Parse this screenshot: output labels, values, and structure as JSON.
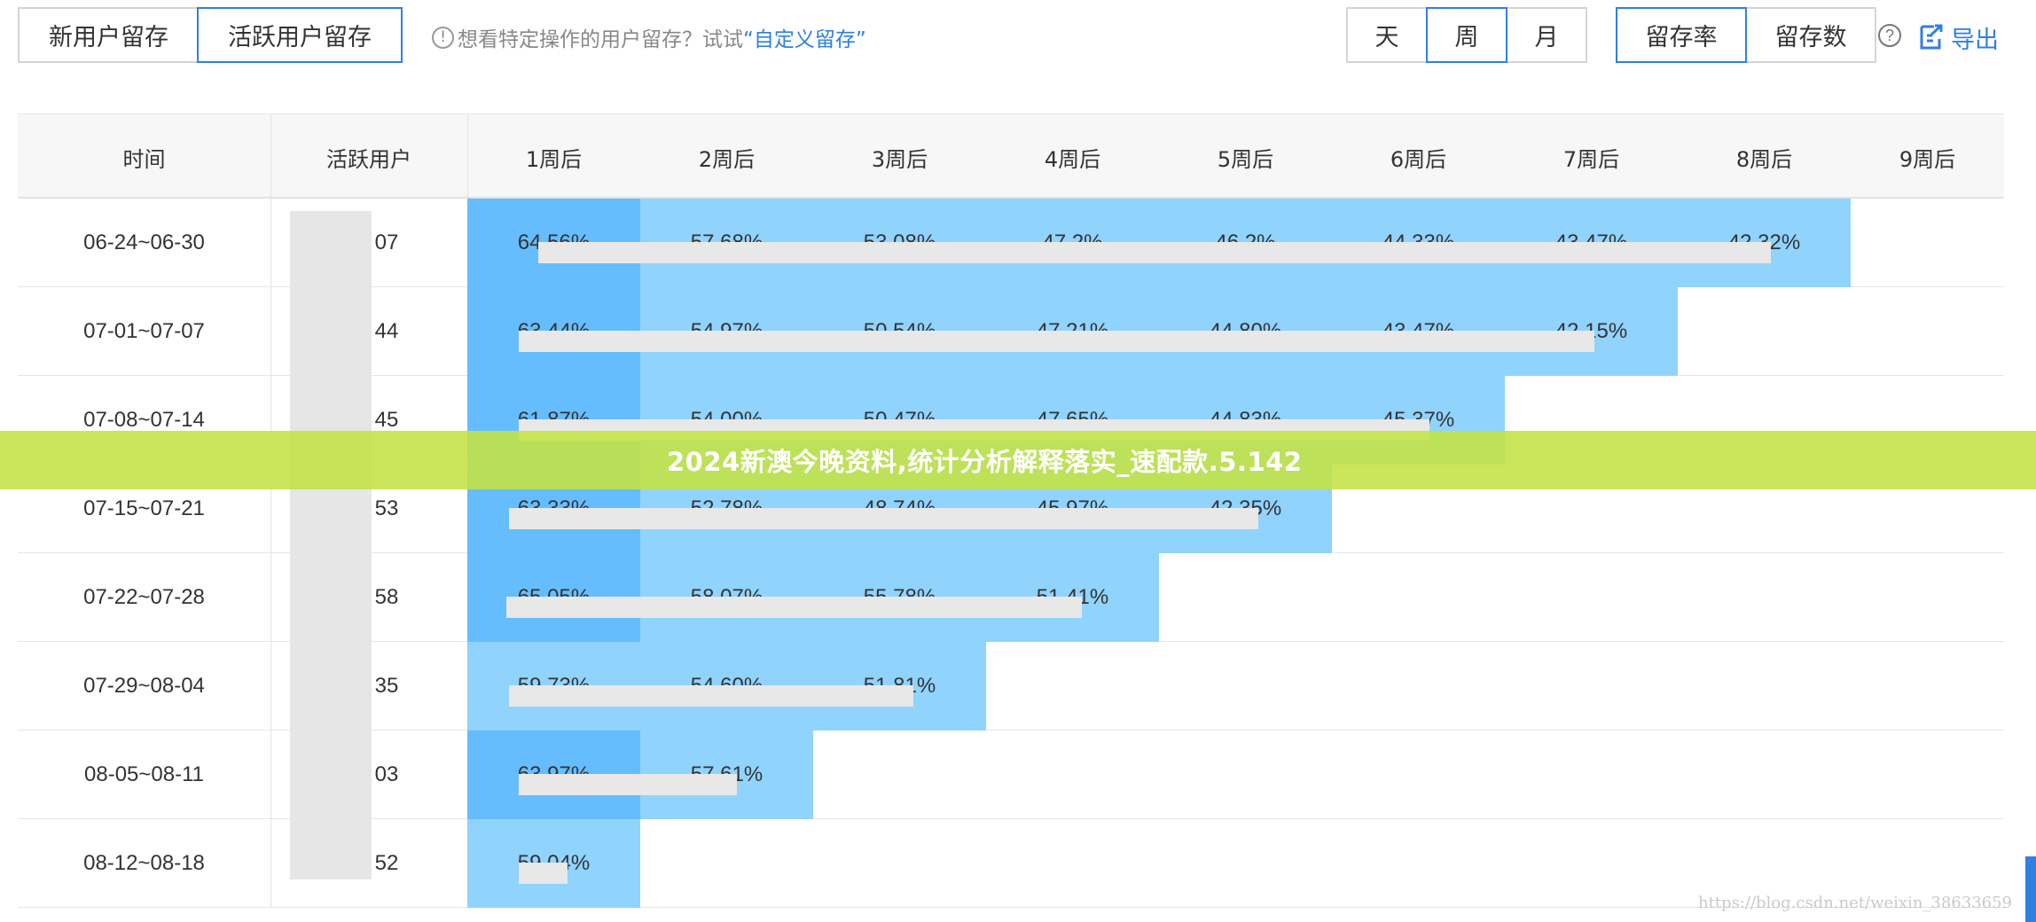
{
  "tabs": {
    "new_user": "新用户留存",
    "active_user": "活跃用户留存",
    "active_selected": "active_user"
  },
  "hint": {
    "prefix": "想看特定操作的用户留存？试试",
    "link": "“自定义留存”",
    "icon": "info-circle-icon"
  },
  "period": {
    "day": "天",
    "week": "周",
    "month": "月",
    "selected": "week"
  },
  "metric": {
    "rate": "留存率",
    "count": "留存数",
    "selected": "rate"
  },
  "export_label": "导出",
  "help_icon": "question-circle-icon",
  "export_icon": "export-icon",
  "colors": {
    "accent": "#2f80e0",
    "cell_dark": "#66bdfd",
    "cell_light": "#90d3fd",
    "banner": "#c4e243"
  },
  "table": {
    "headers": [
      "时间",
      "活跃用户",
      "1周后",
      "2周后",
      "3周后",
      "4周后",
      "5周后",
      "6周后",
      "7周后",
      "8周后",
      "9周后"
    ],
    "rows": [
      {
        "date": "06-24~06-30",
        "users": "07",
        "rates": [
          "64.56%",
          "57.68%",
          "53.08%",
          "47.2%",
          "46.2%",
          "44.33%",
          "43.47%",
          "42.32%"
        ]
      },
      {
        "date": "07-01~07-07",
        "users": "44",
        "rates": [
          "63.44%",
          "54.97%",
          "50.54%",
          "47.21%",
          "44.80%",
          "43.47%",
          "42.15%"
        ]
      },
      {
        "date": "07-08~07-14",
        "users": "45",
        "rates": [
          "61.87%",
          "54.00%",
          "50.47%",
          "47.65%",
          "44.83%",
          "45.37%"
        ]
      },
      {
        "date": "07-15~07-21",
        "users": "53",
        "rates": [
          "63.33%",
          "52.78%",
          "48.74%",
          "45.97%",
          "42.35%"
        ]
      },
      {
        "date": "07-22~07-28",
        "users": "58",
        "rates": [
          "65.05%",
          "58.07%",
          "55.78%",
          "51.41%"
        ]
      },
      {
        "date": "07-29~08-04",
        "users": "35",
        "rates": [
          "59.73%",
          "54.60%",
          "51.81%"
        ]
      },
      {
        "date": "08-05~08-11",
        "users": "03",
        "rates": [
          "63.97%",
          "57.61%"
        ]
      },
      {
        "date": "08-12~08-18",
        "users": "52",
        "rates": [
          "59.04%"
        ]
      }
    ]
  },
  "banner_text": "2024新澳今晚资料,统计分析解释落实_速配款.5.142",
  "watermark": "https://blog.csdn.net/weixin_38633659"
}
